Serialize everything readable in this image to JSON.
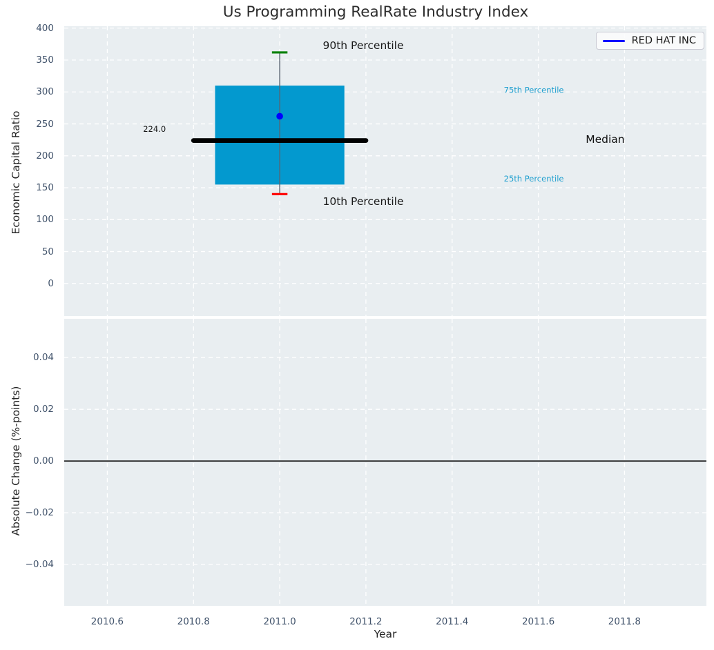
{
  "colors": {
    "figure_background": "#ffffff",
    "plot_background": "#e9eef1",
    "grid": "#ffffff",
    "box_fill": "#0399cf",
    "median_line": "#000000",
    "whisker_line": "#5a6572",
    "cap_90th": "#008000",
    "cap_10th": "#ff0000",
    "company_marker": "#0000ff",
    "legend_line": "#0000ff",
    "percentile_text_blue": "#1f9fcf",
    "tick_label": "#41536b",
    "axis_label": "#262626",
    "title_color": "#2d2d2d",
    "zero_line": "#000000"
  },
  "chart_data": [
    {
      "type": "boxplot",
      "title": "Us Programming RealRate Industry Index",
      "ylabel": "Economic Capital Ratio",
      "xlim": [
        2010.5,
        2011.99
      ],
      "ylim": [
        -51,
        403
      ],
      "y_ticks": [
        0,
        50,
        100,
        150,
        200,
        250,
        300,
        350,
        400
      ],
      "y_tick_labels": [
        "0",
        "50",
        "100",
        "150",
        "200",
        "250",
        "300",
        "350",
        "400"
      ],
      "grid": true,
      "legend": {
        "label": "RED HAT INC",
        "position": "upper right"
      },
      "box": {
        "x": 2011.0,
        "p10": 140,
        "q1": 155,
        "median": 224.0,
        "q3": 310,
        "p90": 362,
        "company_value": 262,
        "box_width": 0.3,
        "median_line_span": 0.4,
        "cap_width": 0.036
      },
      "annotations": [
        {
          "slug": "90th-percentile",
          "text": "90th Percentile",
          "x": 2011.1,
          "y": 373,
          "size": 15.5,
          "color": "#1a1a1a"
        },
        {
          "slug": "10th-percentile",
          "text": "10th Percentile",
          "x": 2011.1,
          "y": 129,
          "size": 15.5,
          "color": "#1a1a1a"
        },
        {
          "slug": "75th-percentile",
          "text": "75th Percentile",
          "x": 2011.52,
          "y": 303,
          "size": 11.5,
          "color": "#1f9fcf"
        },
        {
          "slug": "25th-percentile",
          "text": "25th Percentile",
          "x": 2011.52,
          "y": 164,
          "size": 11.5,
          "color": "#1f9fcf"
        },
        {
          "slug": "median",
          "text": "Median",
          "x": 2011.71,
          "y": 226,
          "size": 15.5,
          "color": "#111111"
        },
        {
          "slug": "median-value",
          "text": "224.0",
          "x": 2010.683,
          "y": 242,
          "size": 11.5,
          "color": "#111111"
        }
      ]
    },
    {
      "type": "line",
      "xlabel": "Year",
      "ylabel": "Absolute Change (%-points)",
      "xlim": [
        2010.5,
        2011.99
      ],
      "ylim": [
        -0.056,
        0.055
      ],
      "x_ticks": [
        2010.6,
        2010.8,
        2011.0,
        2011.2,
        2011.4,
        2011.6,
        2011.8
      ],
      "x_tick_labels": [
        "2010.6",
        "2010.8",
        "2011.0",
        "2011.2",
        "2011.4",
        "2011.6",
        "2011.8"
      ],
      "y_ticks": [
        -0.04,
        -0.02,
        0.0,
        0.02,
        0.04
      ],
      "y_tick_labels": [
        "−0.04",
        "−0.02",
        "0.00",
        "0.02",
        "0.04"
      ],
      "zero_line": 0.0,
      "grid": true,
      "series": []
    }
  ]
}
